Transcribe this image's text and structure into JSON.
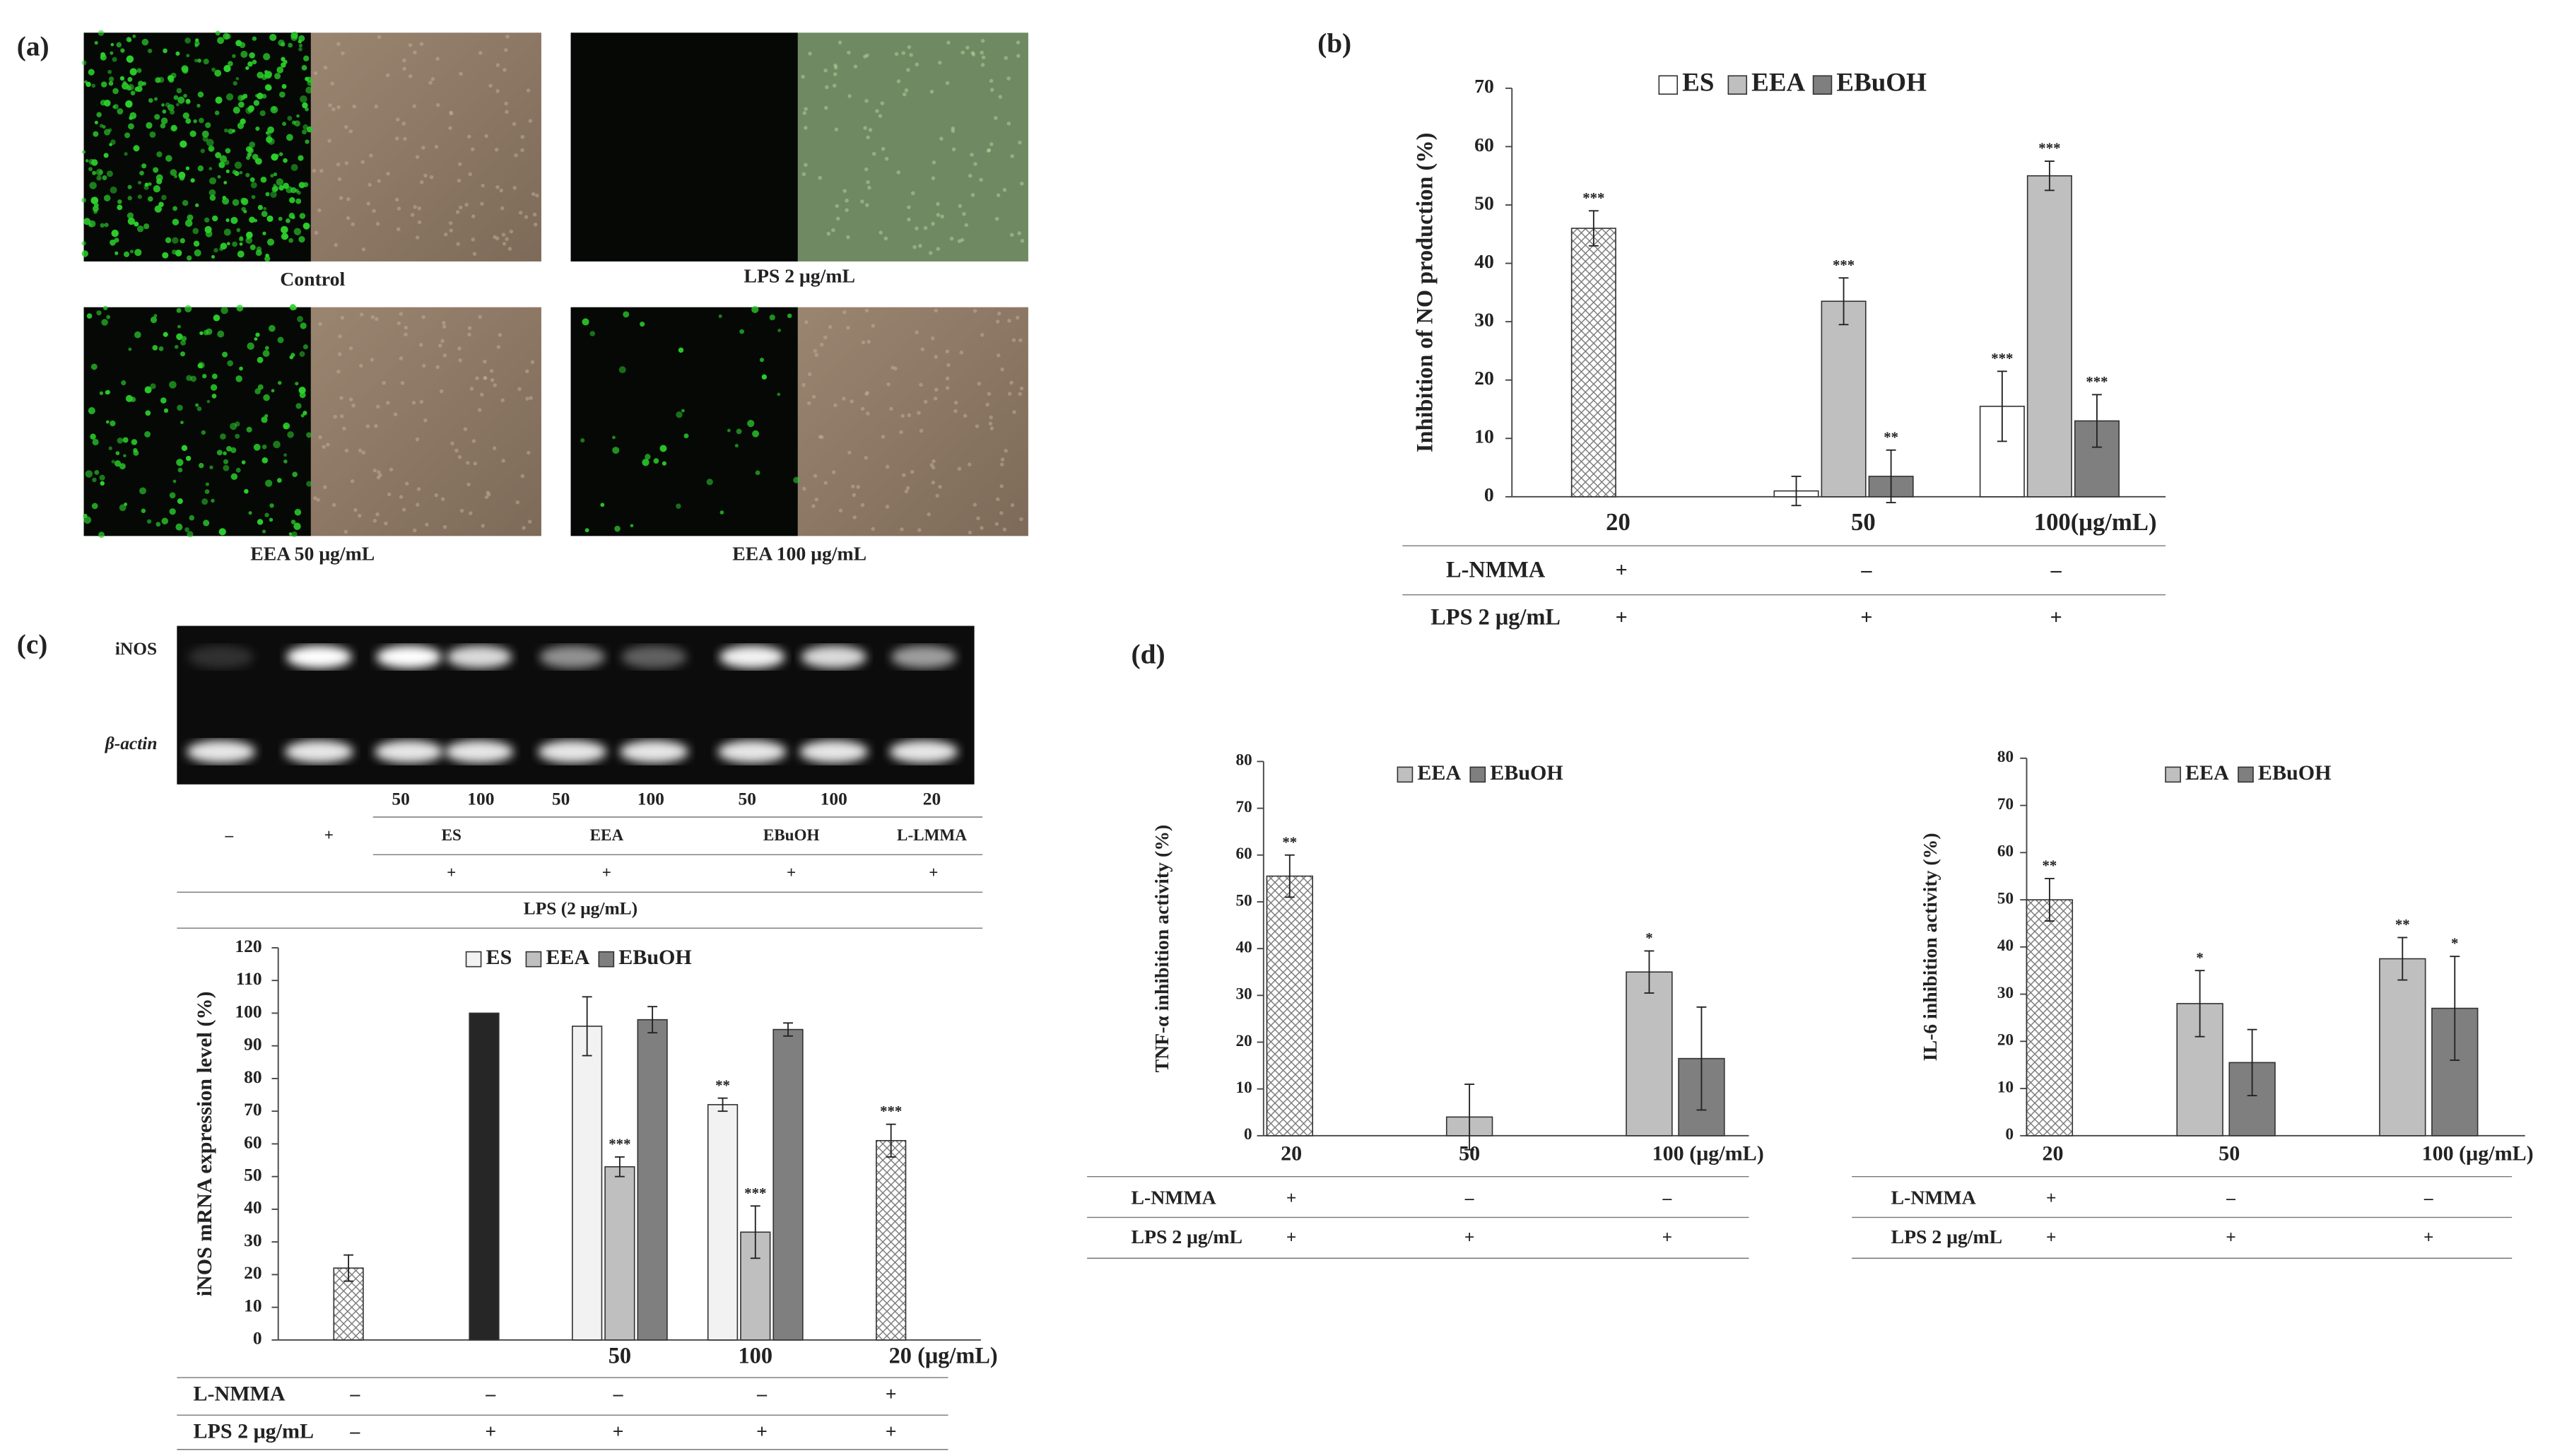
{
  "panel_labels": [
    "(a)",
    "(b)",
    "(c)",
    "(d)"
  ],
  "photos": {
    "captions": [
      "Control",
      "LPS 2 μg/mL",
      "EEA 50 μg/mL",
      "EEA 100 μg/mL"
    ]
  },
  "gel": {
    "rows": [
      "iNOS",
      "β-actin"
    ],
    "lanes": [
      "50",
      "100",
      "50",
      "100",
      "50",
      "100",
      "20"
    ],
    "groups": [
      "–",
      "+",
      "ES",
      "EEA",
      "EBuOH",
      "L-LMMA"
    ],
    "plus": [
      "+",
      "+",
      "+",
      "+"
    ],
    "footer": "LPS  (2 μg/mL)"
  },
  "chart_data": [
    {
      "type": "bar",
      "y_label": "Inhibition of NO production  (%)",
      "categories": [
        "20",
        "50",
        "100(μg/mL)"
      ],
      "ylim": [
        0,
        70
      ],
      "yticks": [
        0,
        10,
        20,
        30,
        40,
        50,
        60,
        70
      ],
      "hatched": {
        "values": [
          46,
          null,
          null
        ],
        "errors": [
          3,
          null,
          null
        ],
        "annotations": [
          "***",
          null,
          null
        ]
      },
      "series": [
        {
          "name": "ES",
          "color": "#ffffff",
          "values": [
            null,
            1,
            15.5
          ],
          "errors": [
            null,
            2.5,
            6
          ],
          "annotations": [
            null,
            null,
            "***"
          ]
        },
        {
          "name": "EEA",
          "color": "#bfbfbf",
          "values": [
            null,
            33.5,
            55
          ],
          "errors": [
            null,
            4,
            2.5
          ],
          "annotations": [
            null,
            "***",
            "***"
          ]
        },
        {
          "name": "EBuOH",
          "color": "#7f7f7f",
          "values": [
            null,
            3.5,
            13
          ],
          "errors": [
            null,
            4.5,
            4.5
          ],
          "annotations": [
            null,
            "**",
            "***"
          ]
        }
      ],
      "table": [
        {
          "label": "L-NMMA",
          "cells": [
            "+",
            "–",
            "–"
          ]
        },
        {
          "label": "LPS 2 μg/mL",
          "cells": [
            "+",
            "+",
            "+"
          ]
        }
      ]
    },
    {
      "type": "bar",
      "y_label": "iNOS mRNA expression level (%)",
      "categories": [
        null,
        null,
        "50",
        "100",
        "20 (μg/mL)"
      ],
      "ylim": [
        0,
        120
      ],
      "yticks": [
        0,
        10,
        20,
        30,
        40,
        50,
        60,
        70,
        80,
        90,
        100,
        110,
        120
      ],
      "hatched": {
        "values": [
          22,
          null,
          null,
          null,
          61
        ],
        "errors": [
          4,
          null,
          null,
          null,
          5
        ],
        "annotations": [
          null,
          null,
          null,
          null,
          "***"
        ]
      },
      "dark": {
        "color": "#262626",
        "values": [
          null,
          100,
          null,
          null,
          null
        ]
      },
      "series": [
        {
          "name": "ES",
          "color": "#f2f2f2",
          "values": [
            null,
            null,
            96,
            72,
            null
          ],
          "errors": [
            null,
            null,
            9,
            2,
            null
          ],
          "annotations": [
            null,
            null,
            null,
            "**",
            null
          ]
        },
        {
          "name": "EEA",
          "color": "#bfbfbf",
          "values": [
            null,
            null,
            53,
            33,
            null
          ],
          "errors": [
            null,
            null,
            3,
            8,
            null
          ],
          "annotations": [
            null,
            null,
            "***",
            "***",
            null
          ]
        },
        {
          "name": "EBuOH",
          "color": "#7f7f7f",
          "values": [
            null,
            null,
            98,
            95,
            null
          ],
          "errors": [
            null,
            null,
            4,
            2,
            null
          ],
          "annotations": [
            null,
            null,
            null,
            null,
            null
          ]
        }
      ],
      "table": [
        {
          "label": "L-NMMA",
          "cells": [
            "–",
            "–",
            "–",
            "–",
            "+"
          ]
        },
        {
          "label": "LPS 2 μg/mL",
          "cells": [
            "–",
            "+",
            "+",
            "+",
            "+"
          ]
        }
      ]
    },
    {
      "type": "bar",
      "y_label": "TNF-α inhibition activity  (%)",
      "categories": [
        "20",
        "50",
        "100 (μg/mL)"
      ],
      "ylim": [
        0,
        80
      ],
      "yticks": [
        0,
        10,
        20,
        30,
        40,
        50,
        60,
        70,
        80
      ],
      "hatched": {
        "values": [
          55.5,
          null,
          null
        ],
        "errors": [
          4.5,
          null,
          null
        ],
        "annotations": [
          "**",
          null,
          null
        ]
      },
      "series": [
        {
          "name": "EEA",
          "color": "#bfbfbf",
          "values": [
            null,
            4,
            35
          ],
          "errors": [
            null,
            7,
            4.5
          ],
          "annotations": [
            null,
            null,
            "*"
          ]
        },
        {
          "name": "EBuOH",
          "color": "#7f7f7f",
          "values": [
            null,
            null,
            16.5
          ],
          "errors": [
            null,
            null,
            11
          ],
          "annotations": [
            null,
            null,
            null
          ]
        }
      ],
      "table": [
        {
          "label": "L-NMMA",
          "cells": [
            "+",
            "–",
            "–"
          ]
        },
        {
          "label": "LPS 2 μg/mL",
          "cells": [
            "+",
            "+",
            "+"
          ]
        }
      ]
    },
    {
      "type": "bar",
      "y_label": "IL-6 inhibition activity  (%)",
      "categories": [
        "20",
        "50",
        "100 (μg/mL)"
      ],
      "ylim": [
        0,
        80
      ],
      "yticks": [
        0,
        10,
        20,
        30,
        40,
        50,
        60,
        70,
        80
      ],
      "hatched": {
        "values": [
          50,
          null,
          null
        ],
        "errors": [
          4.5,
          null,
          null
        ],
        "annotations": [
          "**",
          null,
          null
        ]
      },
      "series": [
        {
          "name": "EEA",
          "color": "#bfbfbf",
          "values": [
            null,
            28,
            37.5
          ],
          "errors": [
            null,
            7,
            4.5
          ],
          "annotations": [
            null,
            "*",
            "**"
          ]
        },
        {
          "name": "EBuOH",
          "color": "#7f7f7f",
          "values": [
            null,
            15.5,
            27
          ],
          "errors": [
            null,
            7,
            11
          ],
          "annotations": [
            null,
            null,
            "*"
          ]
        }
      ],
      "table": [
        {
          "label": "L-NMMA",
          "cells": [
            "+",
            "–",
            "–"
          ]
        },
        {
          "label": "LPS 2 μg/mL",
          "cells": [
            "+",
            "+",
            "+"
          ]
        }
      ]
    }
  ]
}
